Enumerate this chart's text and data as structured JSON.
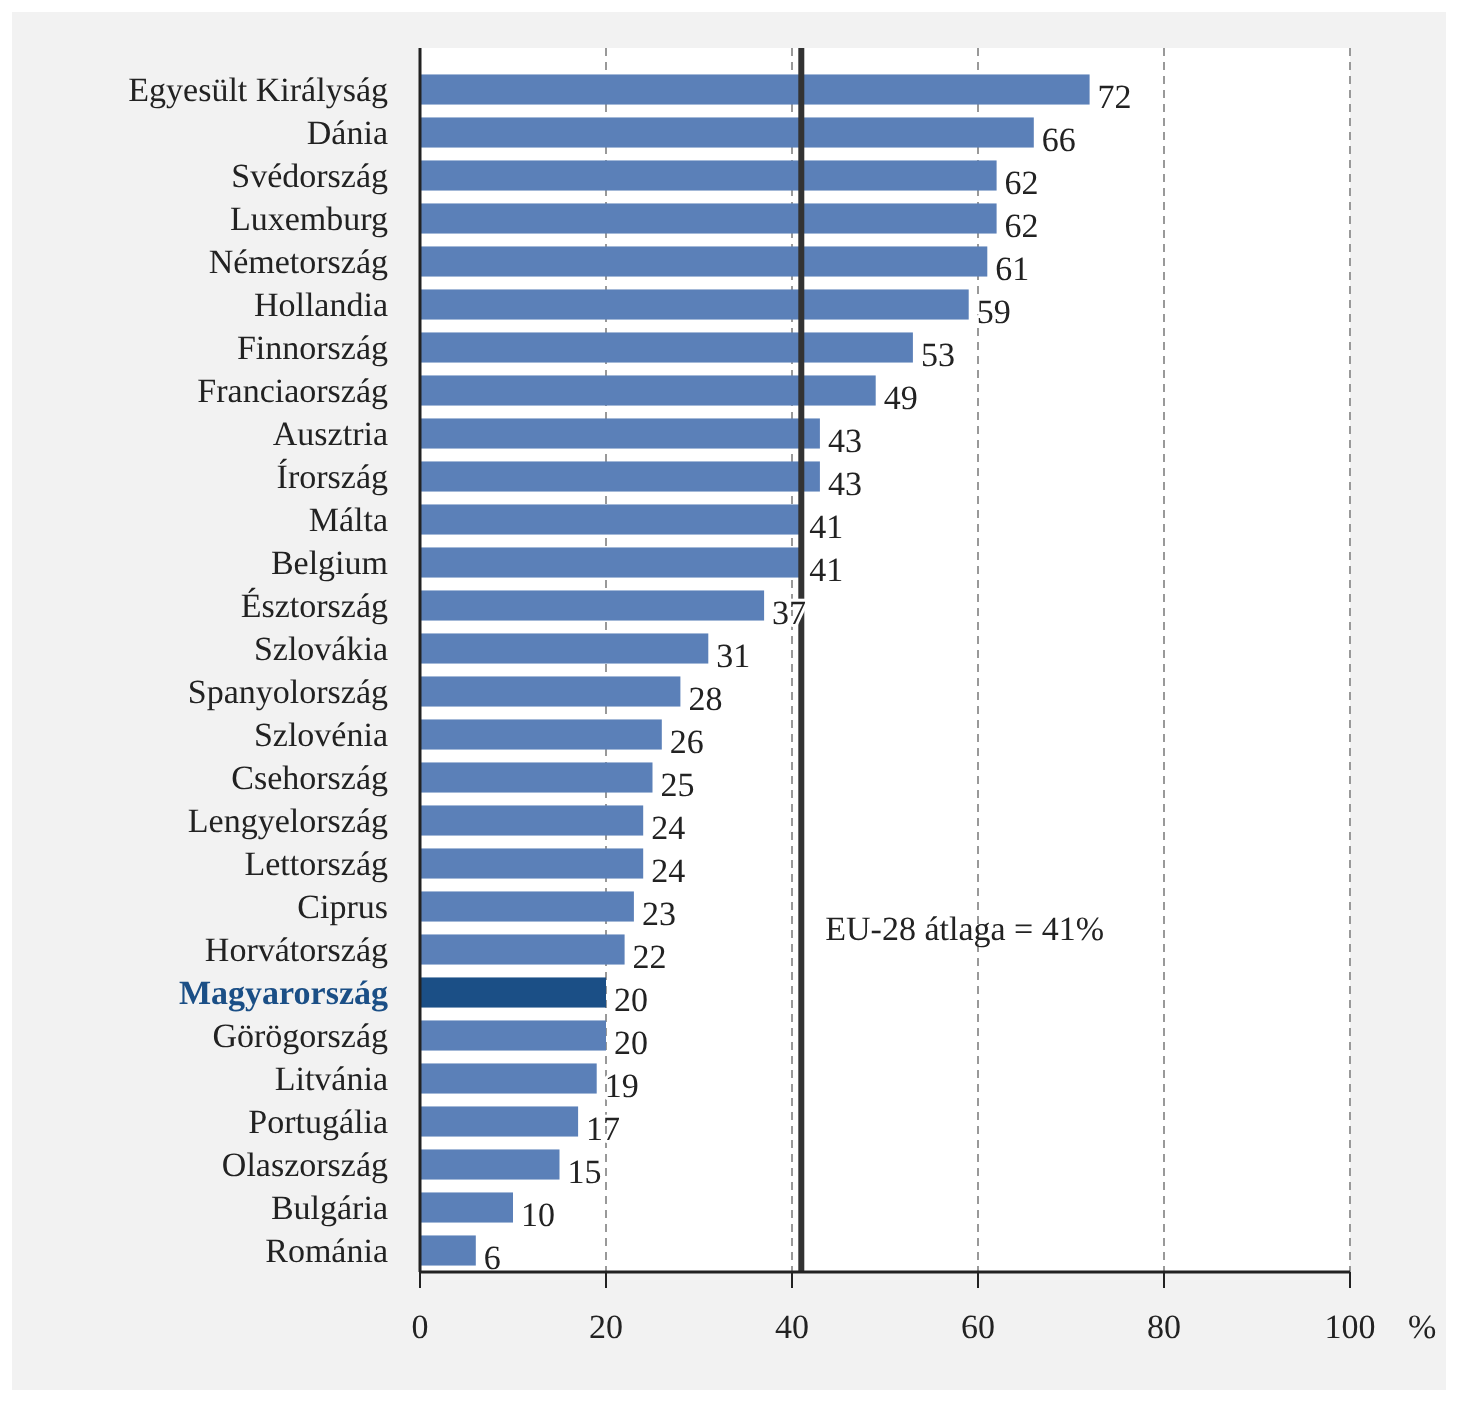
{
  "chart_data": {
    "type": "bar",
    "orientation": "horizontal",
    "xlabel": "%",
    "categories": [
      "Egyesült Királyság",
      "Dánia",
      "Svédország",
      "Luxemburg",
      "Németország",
      "Hollandia",
      "Finnország",
      "Franciaország",
      "Ausztria",
      "Írország",
      "Málta",
      "Belgium",
      "Észtország",
      "Szlovákia",
      "Spanyolország",
      "Szlovénia",
      "Csehország",
      "Lengyelország",
      "Lettország",
      "Ciprus",
      "Horvátország",
      "Magyarország",
      "Görögország",
      "Litvánia",
      "Portugália",
      "Olaszország",
      "Bulgária",
      "Románia"
    ],
    "values": [
      72,
      66,
      62,
      62,
      61,
      59,
      53,
      49,
      43,
      43,
      41,
      41,
      37,
      31,
      28,
      26,
      25,
      24,
      24,
      23,
      22,
      20,
      20,
      19,
      17,
      15,
      10,
      6
    ],
    "colors": [
      "#5b80b8",
      "#5b80b8",
      "#5b80b8",
      "#5b80b8",
      "#5b80b8",
      "#5b80b8",
      "#5b80b8",
      "#5b80b8",
      "#5b80b8",
      "#5b80b8",
      "#5b80b8",
      "#5b80b8",
      "#5b80b8",
      "#5b80b8",
      "#5b80b8",
      "#5b80b8",
      "#5b80b8",
      "#5b80b8",
      "#5b80b8",
      "#5b80b8",
      "#5b80b8",
      "#1b4f86",
      "#5b80b8",
      "#5b80b8",
      "#5b80b8",
      "#5b80b8",
      "#5b80b8",
      "#5b80b8"
    ],
    "xlim": [
      0,
      100
    ],
    "xticks": [
      0,
      20,
      40,
      60,
      80,
      100
    ],
    "grid": "x",
    "data_labels": true,
    "ref_lines": [
      {
        "axis": "x",
        "value": 41,
        "label": "EU-28 átlaga = 41%",
        "color": "#333333"
      }
    ]
  }
}
